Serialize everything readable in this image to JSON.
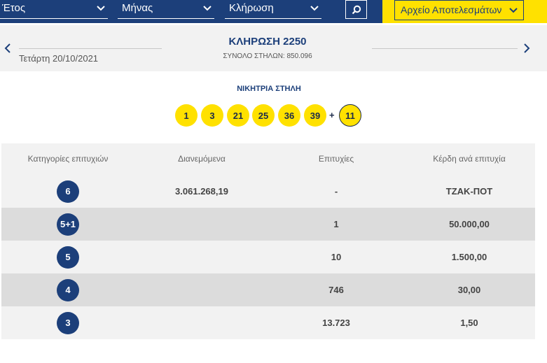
{
  "filters": {
    "year_label": "Έτος",
    "month_label": "Μήνας",
    "draw_label": "Κλήρωση",
    "archive_label": "Αρχείο Αποτελεσμάτων"
  },
  "draw": {
    "title": "ΚΛΗΡΩΣΗ 2250",
    "columns_text": "ΣΥΝΟΛΟ ΣΤΗΛΩΝ: 850.096",
    "date": "Τετάρτη 20/10/2021"
  },
  "winning": {
    "label": "ΝΙΚΗΤΡΙΑ ΣΤΗΛΗ",
    "numbers": [
      "1",
      "3",
      "21",
      "25",
      "36",
      "39"
    ],
    "plus": "+",
    "joker": "11"
  },
  "table": {
    "headers": [
      "Κατηγορίες επιτυχιών",
      "Διανεμόμενα",
      "Επιτυχίες",
      "Κέρδη ανά επιτυχία"
    ],
    "rows": [
      {
        "category": "6",
        "distributed": "3.061.268,19",
        "winners": "-",
        "prize": "ΤΖΑΚ-ΠΟΤ"
      },
      {
        "category": "5+1",
        "distributed": "",
        "winners": "1",
        "prize": "50.000,00"
      },
      {
        "category": "5",
        "distributed": "",
        "winners": "10",
        "prize": "1.500,00"
      },
      {
        "category": "4",
        "distributed": "",
        "winners": "746",
        "prize": "30,00"
      },
      {
        "category": "3",
        "distributed": "",
        "winners": "13.723",
        "prize": "1,50"
      }
    ]
  },
  "colors": {
    "navy": "#1c3f7a",
    "yellow": "#ffe100",
    "row_light": "#f2f2f2",
    "row_dark": "#dcdcdc"
  },
  "icons": [
    "chevron-down-icon",
    "search-icon",
    "chevron-left-icon",
    "chevron-right-icon"
  ]
}
